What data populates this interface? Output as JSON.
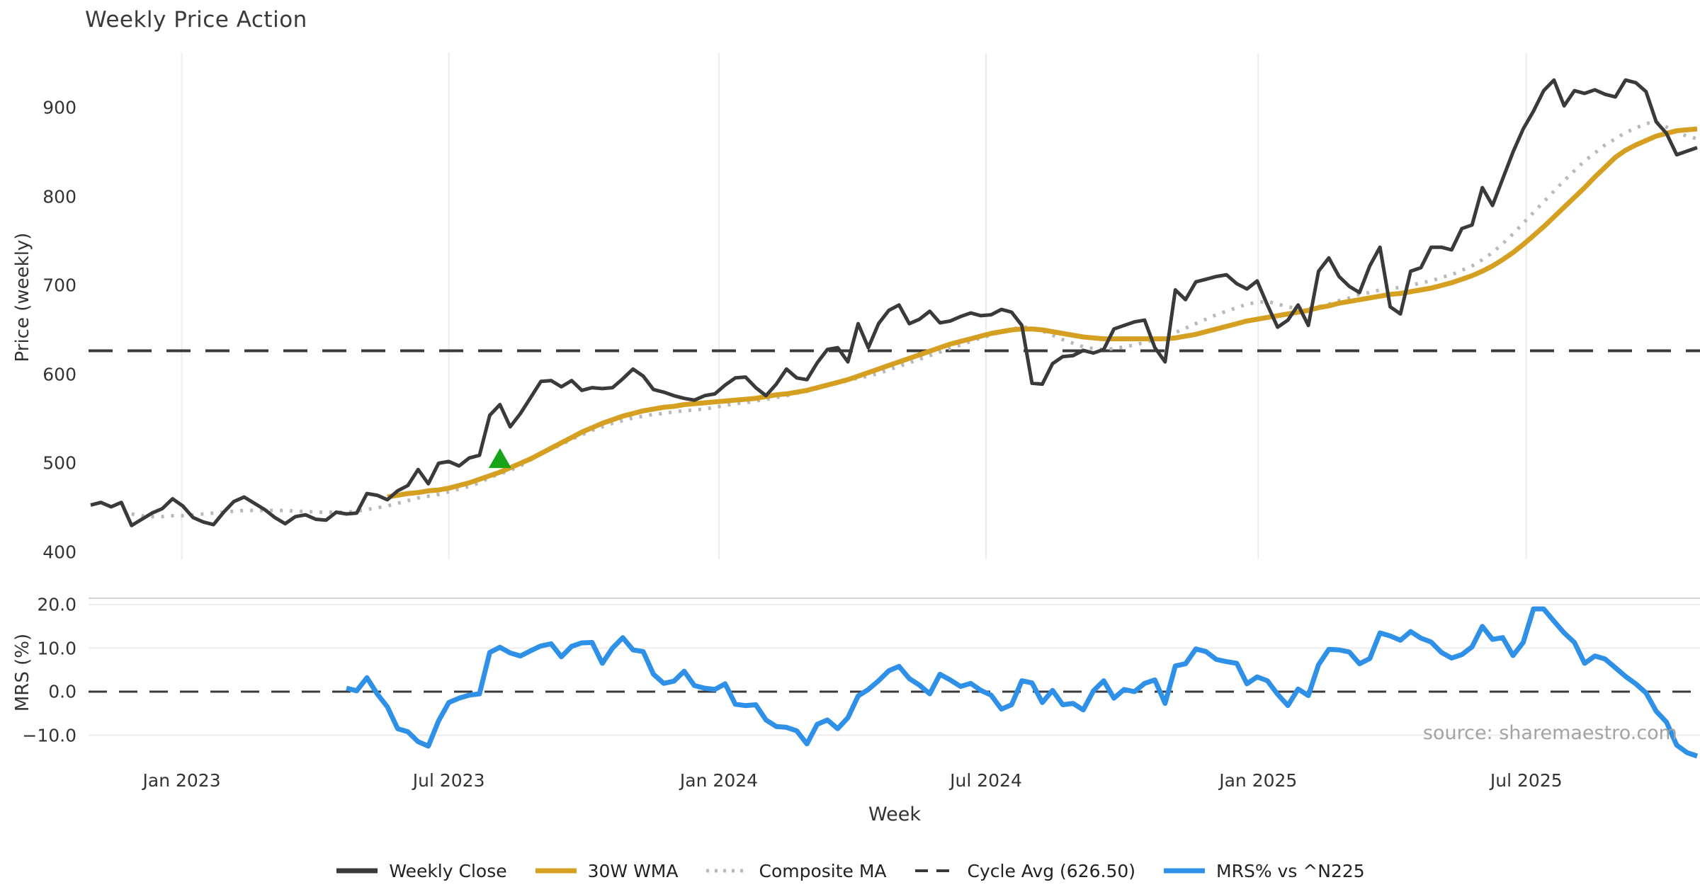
{
  "header": {
    "title": "Weekly Price Action"
  },
  "source_note": "source: sharemaestro.com",
  "colors": {
    "background": "#ffffff",
    "weekly_close": "#3a3a3a",
    "wma_30w": "#d5a021",
    "composite_ma": "#b9b9b9",
    "cycle_avg": "#3a3a3a",
    "mrs_line": "#2f90e8",
    "buy_marker": "#17a317",
    "gridline": "#ececec",
    "panel_spine": "#d5d5d5",
    "text": "#333333",
    "muted_text": "#a3a3a3"
  },
  "legend": [
    {
      "label": "Weekly Close",
      "color": "#3a3a3a",
      "style": "solid"
    },
    {
      "label": "30W WMA",
      "color": "#d5a021",
      "style": "solid"
    },
    {
      "label": "Composite MA",
      "color": "#b9b9b9",
      "style": "dotted"
    },
    {
      "label": "Cycle Avg (626.50)",
      "color": "#3a3a3a",
      "style": "dashed"
    },
    {
      "label": "MRS% vs ^N225",
      "color": "#2f90e8",
      "style": "solid"
    }
  ],
  "chart_data": {
    "type": "line",
    "title": "Weekly Price Action",
    "xlabel": "Week",
    "x_start_date": "2022-10-31",
    "x_frequency": "weekly",
    "n_points": 158,
    "x_ticks": [
      {
        "label": "Jan 2023",
        "week": 8.9
      },
      {
        "label": "Jul 2023",
        "week": 35.0
      },
      {
        "label": "Jan 2024",
        "week": 61.4
      },
      {
        "label": "Jul 2024",
        "week": 87.5
      },
      {
        "label": "Jan 2025",
        "week": 114.1
      },
      {
        "label": "Jul 2025",
        "week": 140.3
      }
    ],
    "price_axis": {
      "label": "Price (weekly)",
      "ticks": [
        {
          "label": "900",
          "value": 900
        },
        {
          "label": "800",
          "value": 800
        },
        {
          "label": "700",
          "value": 700
        },
        {
          "label": "600",
          "value": 600
        },
        {
          "label": "500",
          "value": 500
        },
        {
          "label": "400",
          "value": 400
        }
      ],
      "ylim": [
        392,
        961
      ],
      "grid": "vertical-only"
    },
    "mrs_axis": {
      "label": "MRS (%)",
      "ticks": [
        {
          "label": "20.0",
          "value": 20
        },
        {
          "label": "10.0",
          "value": 10
        },
        {
          "label": "0.0",
          "value": 0
        },
        {
          "label": "−10.0",
          "value": -10
        }
      ],
      "ylim": [
        -15.5,
        21.5
      ],
      "grid": "horizontal-only",
      "zero_line": "dashed"
    },
    "cycle_avg_value": 626.5,
    "series": [
      {
        "name": "Weekly Close",
        "panel": "price",
        "style": "solid",
        "color": "#3a3a3a",
        "values": [
          453,
          456,
          451,
          456,
          430,
          437,
          444,
          449,
          460,
          452,
          439,
          434,
          431,
          445,
          457,
          462,
          455,
          448,
          439,
          432,
          440,
          442,
          437,
          436,
          445,
          443,
          444,
          466,
          464,
          459,
          469,
          475,
          493,
          477,
          500,
          502,
          497,
          506,
          509,
          554,
          566,
          541,
          556,
          574,
          592,
          593,
          586,
          593,
          582,
          585,
          584,
          585,
          595,
          606,
          598,
          583,
          580,
          576,
          573,
          571,
          576,
          578,
          588,
          596,
          597,
          585,
          576,
          589,
          606,
          596,
          594,
          613,
          628,
          630,
          614,
          657,
          630,
          657,
          672,
          678,
          657,
          662,
          671,
          658,
          660,
          665,
          669,
          666,
          667,
          673,
          670,
          655,
          590,
          589,
          612,
          620,
          621,
          627,
          624,
          628,
          651,
          655,
          659,
          661,
          630,
          614,
          695,
          684,
          704,
          707,
          710,
          712,
          702,
          696,
          705,
          678,
          653,
          661,
          678,
          655,
          716,
          731,
          710,
          699,
          692,
          722,
          743,
          676,
          668,
          716,
          720,
          743,
          743,
          740,
          764,
          768,
          810,
          790,
          820,
          850,
          876,
          896,
          919,
          931,
          902,
          919,
          916,
          920,
          915,
          912,
          931,
          928,
          918,
          884,
          871,
          847,
          851,
          855
        ]
      },
      {
        "name": "30W WMA",
        "panel": "price",
        "style": "solid",
        "color": "#d5a021",
        "values": [
          null,
          null,
          null,
          null,
          null,
          null,
          null,
          null,
          null,
          null,
          null,
          null,
          null,
          null,
          null,
          null,
          null,
          null,
          null,
          null,
          null,
          null,
          null,
          null,
          null,
          null,
          null,
          null,
          null,
          462,
          464,
          466,
          467,
          469,
          470,
          472,
          475,
          478,
          482,
          486,
          490,
          495,
          500,
          505,
          511,
          517,
          523,
          529,
          535,
          540,
          545,
          549,
          553,
          556,
          559,
          561,
          563,
          564,
          566,
          567,
          568,
          569,
          570,
          571,
          572,
          573,
          575,
          577,
          578,
          580,
          582,
          585,
          588,
          591,
          594,
          598,
          602,
          606,
          610,
          614,
          618,
          622,
          626,
          630,
          634,
          637,
          640,
          643,
          646,
          648,
          650,
          651,
          651,
          650,
          648,
          646,
          644,
          642,
          641,
          640,
          640,
          640,
          640,
          640,
          640,
          640,
          641,
          643,
          645,
          648,
          651,
          654,
          657,
          660,
          662,
          664,
          666,
          668,
          670,
          672,
          675,
          677,
          680,
          682,
          684,
          686,
          688,
          690,
          691,
          693,
          695,
          697,
          700,
          703,
          707,
          711,
          716,
          722,
          729,
          737,
          746,
          756,
          766,
          777,
          788,
          799,
          810,
          822,
          833,
          844,
          852,
          858,
          863,
          868,
          871,
          874,
          875,
          876
        ]
      },
      {
        "name": "Composite MA",
        "panel": "price",
        "style": "dotted",
        "color": "#b9b9b9",
        "values": [
          null,
          null,
          null,
          null,
          443,
          441,
          440,
          440,
          441,
          441,
          442,
          443,
          444,
          445,
          446,
          447,
          447,
          447,
          447,
          447,
          446,
          446,
          445,
          445,
          445,
          445,
          446,
          448,
          450,
          452,
          455,
          458,
          461,
          463,
          465,
          468,
          471,
          474,
          478,
          484,
          488,
          492,
          497,
          504,
          510,
          516,
          521,
          527,
          532,
          537,
          541,
          545,
          548,
          551,
          553,
          555,
          556,
          558,
          559,
          560,
          561,
          563,
          565,
          567,
          568,
          570,
          572,
          574,
          576,
          579,
          581,
          584,
          587,
          590,
          593,
          596,
          598,
          601,
          605,
          609,
          613,
          617,
          621,
          625,
          629,
          633,
          637,
          641,
          644,
          648,
          651,
          653,
          653,
          649,
          644,
          639,
          635,
          631,
          629,
          628,
          629,
          631,
          633,
          636,
          639,
          643,
          647,
          652,
          657,
          662,
          667,
          671,
          675,
          679,
          681,
          682,
          679,
          676,
          674,
          674,
          676,
          679,
          683,
          686,
          690,
          692,
          695,
          696,
          698,
          700,
          703,
          705,
          709,
          712,
          717,
          722,
          729,
          737,
          747,
          758,
          770,
          782,
          794,
          806,
          818,
          829,
          840,
          849,
          858,
          865,
          872,
          877,
          882,
          884,
          878,
          872,
          868,
          865
        ]
      },
      {
        "name": "MRS% vs ^N225",
        "panel": "mrs",
        "style": "solid",
        "color": "#2f90e8",
        "values": [
          null,
          null,
          null,
          null,
          null,
          null,
          null,
          null,
          null,
          null,
          null,
          null,
          null,
          null,
          null,
          null,
          null,
          null,
          null,
          null,
          null,
          null,
          null,
          null,
          null,
          0.8,
          0.2,
          3.2,
          -0.5,
          -3.5,
          -8.5,
          -9.2,
          -11.5,
          -12.5,
          -6.7,
          -2.5,
          -1.5,
          -0.8,
          -0.5,
          9.0,
          10.2,
          8.9,
          8.2,
          9.4,
          10.5,
          11.0,
          8.0,
          10.4,
          11.2,
          11.3,
          6.5,
          10.0,
          12.4,
          9.6,
          9.2,
          4.0,
          1.9,
          2.4,
          4.7,
          1.4,
          0.8,
          0.5,
          1.8,
          -2.9,
          -3.2,
          -3.0,
          -6.5,
          -8.0,
          -8.2,
          -9.0,
          -12.0,
          -7.5,
          -6.5,
          -8.5,
          -6.0,
          -1.0,
          0.5,
          2.5,
          4.8,
          5.8,
          3.0,
          1.5,
          -0.5,
          4.0,
          2.7,
          1.2,
          1.9,
          0.3,
          -0.8,
          -4.0,
          -3.0,
          2.5,
          2.0,
          -2.5,
          0.3,
          -3.0,
          -2.7,
          -4.2,
          0.2,
          2.5,
          -1.5,
          0.5,
          0.0,
          1.9,
          2.7,
          -2.7,
          5.9,
          6.4,
          9.8,
          9.2,
          7.4,
          6.9,
          6.5,
          1.8,
          3.4,
          2.5,
          -0.6,
          -3.2,
          0.6,
          -0.9,
          6.2,
          9.7,
          9.6,
          9.1,
          6.4,
          7.6,
          13.5,
          12.8,
          11.8,
          13.8,
          12.3,
          11.4,
          9.0,
          7.7,
          8.5,
          10.3,
          15.0,
          12.0,
          12.4,
          8.3,
          11.3,
          19.0,
          19.0,
          16.2,
          13.5,
          11.3,
          6.5,
          8.2,
          7.5,
          5.5,
          3.5,
          1.8,
          -0.3,
          -4.5,
          -7.0,
          -12.3,
          -14.0,
          -14.8
        ]
      }
    ],
    "markers": [
      {
        "name": "buy-signal-triangle",
        "shape": "triangle-up",
        "color": "#17a317",
        "week": 40,
        "price": 505
      }
    ],
    "legend_position": "bottom-center",
    "source_note": "source: sharemaestro.com"
  }
}
